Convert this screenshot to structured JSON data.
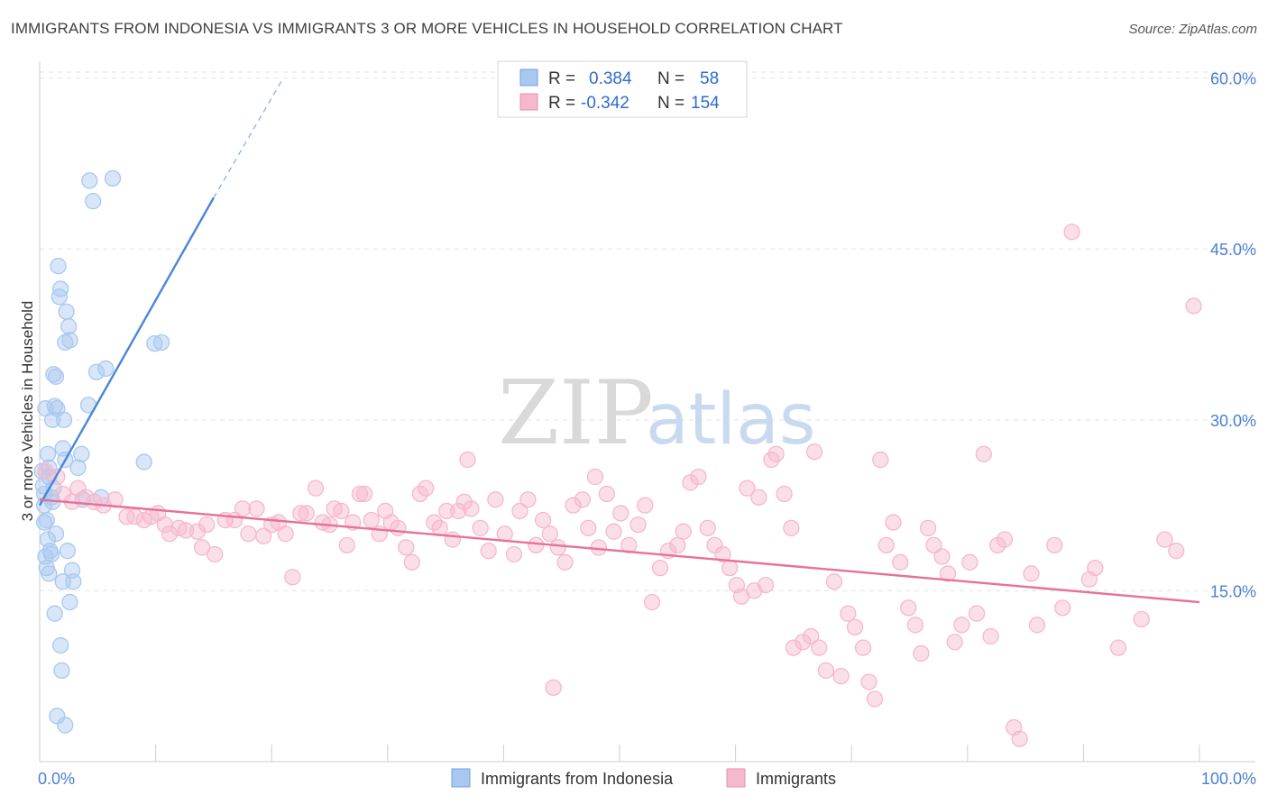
{
  "title": "IMMIGRANTS FROM INDONESIA VS IMMIGRANTS 3 OR MORE VEHICLES IN HOUSEHOLD CORRELATION CHART",
  "source": "Source: ZipAtlas.com",
  "watermark": {
    "zip": "ZIP",
    "atlas": "atlas"
  },
  "legend": {
    "r_label": "R =",
    "n_label": "N =",
    "rows": [
      {
        "r": "0.384",
        "n": "58",
        "color": "#a8c8f0"
      },
      {
        "r": "-0.342",
        "n": "154",
        "color": "#f6b8cc"
      }
    ]
  },
  "chart_data": {
    "type": "scatter",
    "xlabel": "",
    "ylabel": "3 or more Vehicles in Household",
    "xlim": [
      0,
      100
    ],
    "ylim": [
      0,
      61
    ],
    "x_tick_labels": [
      "0.0%",
      "100.0%"
    ],
    "y_ticks": [
      15,
      30,
      45,
      60
    ],
    "y_tick_labels": [
      "15.0%",
      "30.0%",
      "45.0%",
      "60.0%"
    ],
    "grid": "horizontal dashed",
    "legend_position": "top-center",
    "series": [
      {
        "name": "Immigrants from Indonesia",
        "color": "#4a86d6",
        "fill": "#a8c8f0",
        "trend": {
          "x0": 0,
          "y0": 22.5,
          "x1": 15,
          "y1": 49.5,
          "dash_to_x": 21,
          "dash_to_y": 60
        },
        "points": [
          [
            0.2,
            25.5
          ],
          [
            0.3,
            24.2
          ],
          [
            0.4,
            22.5
          ],
          [
            0.4,
            21
          ],
          [
            0.5,
            18
          ],
          [
            0.6,
            17
          ],
          [
            0.7,
            19.5
          ],
          [
            0.8,
            16.5
          ],
          [
            0.5,
            31
          ],
          [
            0.7,
            27
          ],
          [
            0.8,
            25.8
          ],
          [
            1.0,
            23.2
          ],
          [
            1.1,
            30
          ],
          [
            1.2,
            34
          ],
          [
            1.3,
            31.2
          ],
          [
            1.4,
            33.8
          ],
          [
            1.4,
            20
          ],
          [
            1.5,
            31
          ],
          [
            1.6,
            43.5
          ],
          [
            1.7,
            40.8
          ],
          [
            1.8,
            41.5
          ],
          [
            1.8,
            10.2
          ],
          [
            1.9,
            8
          ],
          [
            2.0,
            27.5
          ],
          [
            2.1,
            30
          ],
          [
            2.2,
            36.8
          ],
          [
            2.2,
            26.5
          ],
          [
            2.3,
            39.5
          ],
          [
            2.4,
            18.5
          ],
          [
            2.5,
            38.2
          ],
          [
            2.6,
            37
          ],
          [
            2.6,
            14
          ],
          [
            2.8,
            16.8
          ],
          [
            2.9,
            15.8
          ],
          [
            3.3,
            25.8
          ],
          [
            3.6,
            27
          ],
          [
            3.7,
            23
          ],
          [
            4.2,
            31.3
          ],
          [
            4.3,
            51
          ],
          [
            4.6,
            49.2
          ],
          [
            4.9,
            34.2
          ],
          [
            5.3,
            23.2
          ],
          [
            5.7,
            34.5
          ],
          [
            6.3,
            51.2
          ],
          [
            9.0,
            26.3
          ],
          [
            9.9,
            36.7
          ],
          [
            10.5,
            36.8
          ],
          [
            1.5,
            4
          ],
          [
            2.2,
            3.2
          ],
          [
            1.3,
            13
          ],
          [
            1.0,
            18.2
          ],
          [
            0.6,
            21.2
          ],
          [
            1.1,
            22.8
          ],
          [
            0.9,
            18.5
          ],
          [
            2.0,
            15.8
          ],
          [
            1.2,
            24
          ],
          [
            0.4,
            23.5
          ],
          [
            0.8,
            25
          ]
        ]
      },
      {
        "name": "Immigrants",
        "color": "#e8709a",
        "fill": "#f6b8cc",
        "trend": {
          "x0": 0,
          "y0": 23,
          "x1": 100,
          "y1": 14
        },
        "points": [
          [
            0.5,
            25.5
          ],
          [
            1.5,
            25
          ],
          [
            2,
            23.5
          ],
          [
            2.8,
            22.8
          ],
          [
            3.3,
            24
          ],
          [
            4,
            23.2
          ],
          [
            4.7,
            22.8
          ],
          [
            5.5,
            22.5
          ],
          [
            6.5,
            23
          ],
          [
            7.5,
            21.5
          ],
          [
            8.2,
            21.5
          ],
          [
            9,
            21.2
          ],
          [
            9.6,
            21.5
          ],
          [
            10.2,
            21.8
          ],
          [
            10.8,
            20.8
          ],
          [
            11.2,
            20
          ],
          [
            12,
            20.5
          ],
          [
            12.6,
            20.3
          ],
          [
            13.6,
            20.2
          ],
          [
            14,
            18.8
          ],
          [
            14.4,
            20.8
          ],
          [
            15.1,
            18.2
          ],
          [
            16,
            21.2
          ],
          [
            16.8,
            21.2
          ],
          [
            17.5,
            22.2
          ],
          [
            18,
            20
          ],
          [
            18.7,
            22.2
          ],
          [
            19.3,
            19.8
          ],
          [
            20,
            20.8
          ],
          [
            20.6,
            21
          ],
          [
            21.2,
            20
          ],
          [
            21.8,
            16.2
          ],
          [
            22.5,
            21.8
          ],
          [
            23,
            21.8
          ],
          [
            23.8,
            24
          ],
          [
            24.4,
            21
          ],
          [
            25,
            20.8
          ],
          [
            25.4,
            22.2
          ],
          [
            26,
            22
          ],
          [
            26.5,
            19
          ],
          [
            27,
            21
          ],
          [
            27.6,
            23.5
          ],
          [
            28,
            23.5
          ],
          [
            28.6,
            21.2
          ],
          [
            29.3,
            20
          ],
          [
            29.8,
            22
          ],
          [
            30.3,
            21
          ],
          [
            30.9,
            20.5
          ],
          [
            31.6,
            18.8
          ],
          [
            32.1,
            17.5
          ],
          [
            32.8,
            23.5
          ],
          [
            33.3,
            24
          ],
          [
            34,
            21
          ],
          [
            34.5,
            20.5
          ],
          [
            35.1,
            22
          ],
          [
            35.6,
            19.5
          ],
          [
            36.1,
            22
          ],
          [
            36.6,
            22.8
          ],
          [
            37.2,
            22.2
          ],
          [
            38,
            20.5
          ],
          [
            38.7,
            18.5
          ],
          [
            39.3,
            23
          ],
          [
            40.1,
            20
          ],
          [
            40.9,
            18.2
          ],
          [
            41.4,
            22
          ],
          [
            42.1,
            23
          ],
          [
            42.8,
            19
          ],
          [
            43.4,
            21.2
          ],
          [
            44,
            20
          ],
          [
            44.7,
            18.8
          ],
          [
            45.3,
            17.5
          ],
          [
            46,
            22.5
          ],
          [
            46.8,
            23
          ],
          [
            47.3,
            20.5
          ],
          [
            47.9,
            25
          ],
          [
            48.2,
            18.8
          ],
          [
            48.9,
            23.5
          ],
          [
            49.5,
            20.2
          ],
          [
            50.1,
            21.8
          ],
          [
            50.8,
            19
          ],
          [
            51.6,
            20.8
          ],
          [
            52.2,
            22.5
          ],
          [
            52.8,
            14
          ],
          [
            53.5,
            17
          ],
          [
            54.2,
            18.5
          ],
          [
            55,
            19
          ],
          [
            55.5,
            20.2
          ],
          [
            56.1,
            24.5
          ],
          [
            56.8,
            25
          ],
          [
            57.6,
            20.5
          ],
          [
            58.2,
            19
          ],
          [
            58.9,
            18.2
          ],
          [
            59.5,
            17
          ],
          [
            60.1,
            15.5
          ],
          [
            60.5,
            14.5
          ],
          [
            61,
            24
          ],
          [
            61.6,
            15
          ],
          [
            62,
            23.2
          ],
          [
            62.6,
            15.5
          ],
          [
            63.1,
            26.5
          ],
          [
            63.5,
            27
          ],
          [
            64.2,
            23.5
          ],
          [
            64.8,
            20.5
          ],
          [
            65,
            10
          ],
          [
            65.8,
            10.5
          ],
          [
            66.5,
            11
          ],
          [
            67.2,
            10
          ],
          [
            67.8,
            8
          ],
          [
            68.5,
            15.8
          ],
          [
            69.1,
            7.5
          ],
          [
            69.7,
            13
          ],
          [
            70.3,
            11.8
          ],
          [
            71,
            10
          ],
          [
            71.5,
            7
          ],
          [
            72,
            5.5
          ],
          [
            72.5,
            26.5
          ],
          [
            73,
            19
          ],
          [
            73.6,
            21
          ],
          [
            74.2,
            17.5
          ],
          [
            74.9,
            13.5
          ],
          [
            75.5,
            12
          ],
          [
            76,
            9.5
          ],
          [
            76.6,
            20.5
          ],
          [
            77.1,
            19
          ],
          [
            77.8,
            18
          ],
          [
            78.3,
            16.5
          ],
          [
            78.9,
            10.5
          ],
          [
            79.5,
            12
          ],
          [
            80.2,
            17.5
          ],
          [
            80.8,
            13
          ],
          [
            81.4,
            27
          ],
          [
            82,
            11
          ],
          [
            82.6,
            19
          ],
          [
            83.2,
            19.5
          ],
          [
            84,
            3
          ],
          [
            84.5,
            2
          ],
          [
            85.5,
            16.5
          ],
          [
            86,
            12
          ],
          [
            87.5,
            19
          ],
          [
            88.2,
            13.5
          ],
          [
            89,
            46.5
          ],
          [
            90.5,
            16
          ],
          [
            91,
            17
          ],
          [
            93,
            10
          ],
          [
            95,
            12.5
          ],
          [
            97,
            19.5
          ],
          [
            98,
            18.5
          ],
          [
            99.5,
            40
          ],
          [
            36.9,
            26.5
          ],
          [
            66.8,
            27.2
          ],
          [
            44.3,
            6.5
          ]
        ]
      }
    ]
  },
  "bottom_legend": [
    {
      "label": "Immigrants from Indonesia",
      "color": "#a8c8f0"
    },
    {
      "label": "Immigrants",
      "color": "#f6b8cc"
    }
  ]
}
